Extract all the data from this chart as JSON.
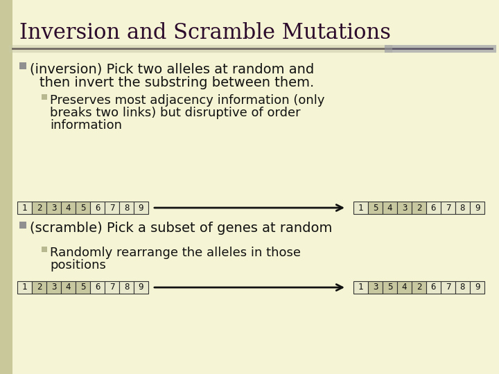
{
  "title": "Inversion and Scramble Mutations",
  "bg_color": "#f5f5d5",
  "left_bar_color": "#c8c89a",
  "title_color": "#2b0a2b",
  "title_fontsize": 22,
  "separator_color1": "#1a0a1a",
  "separator_color2": "#9090a0",
  "bullet_color": "#909090",
  "bullet2_color": "#b8b890",
  "text_color": "#111111",
  "bullet1_text_line1": "(inversion) Pick two alleles at random and",
  "bullet1_text_line2": "then invert the substring between them.",
  "bullet1a_text_line1": "Preserves most adjacency information (only",
  "bullet1a_text_line2": "breaks two links) but disruptive of order",
  "bullet1a_text_line3": "information",
  "inv_before": [
    "1",
    "2",
    "3",
    "4",
    "5",
    "6",
    "7",
    "8",
    "9"
  ],
  "inv_after": [
    "1",
    "5",
    "4",
    "3",
    "2",
    "6",
    "7",
    "8",
    "9"
  ],
  "inv_highlighted_before": [
    1,
    2,
    3,
    4
  ],
  "inv_highlighted_after": [
    1,
    2,
    3,
    4
  ],
  "bullet2_text": "(scramble) Pick a subset of genes at random",
  "bullet2a_text_line1": "Randomly rearrange the alleles in those",
  "bullet2a_text_line2": "positions",
  "scr_before": [
    "1",
    "2",
    "3",
    "4",
    "5",
    "6",
    "7",
    "8",
    "9"
  ],
  "scr_after": [
    "1",
    "3",
    "5",
    "4",
    "2",
    "6",
    "7",
    "8",
    "9"
  ],
  "scr_highlighted_before": [
    1,
    2,
    3,
    4
  ],
  "scr_highlighted_after": [
    1,
    2,
    3,
    4
  ],
  "box_border_color": "#333333",
  "box_fill_normal": "#e8e8cc",
  "box_fill_highlight": "#c8c8a0",
  "arrow_color": "#111111",
  "cell_fontsize": 9,
  "text_fontsize": 14,
  "sub_fontsize": 13
}
